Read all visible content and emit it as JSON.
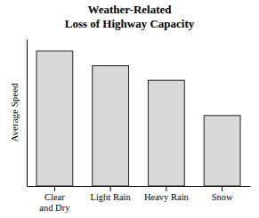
{
  "chart_data": {
    "type": "bar",
    "title": "Weather-Related\nLoss of Highway Capacity",
    "ylabel": "Average Speed",
    "categories": [
      "Clear\nand Dry",
      "Light Rain",
      "Heavy Rain",
      "Snow"
    ],
    "values": [
      92,
      82,
      72,
      48
    ],
    "color": "#d8d8d8",
    "ylim": [
      0,
      100
    ],
    "grid": false,
    "tick_labels": "x"
  }
}
